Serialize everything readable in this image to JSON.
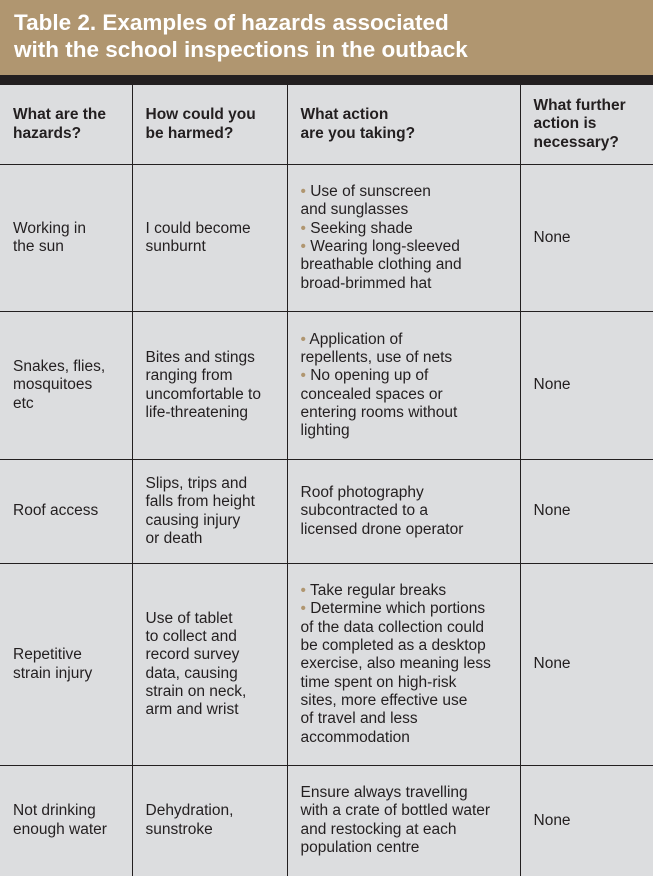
{
  "title": "Table 2. Examples of hazards associated\nwith the school inspections in the outback",
  "headers": [
    "What are the\nhazards?",
    "How could you\nbe harmed?",
    "What action\nare you taking?",
    "What further\naction is\nnecessary?"
  ],
  "rows": [
    {
      "hazard": "Working in\nthe sun",
      "harm": "I could become\nsunburnt",
      "actions": [
        "Use of sunscreen\nand sunglasses",
        "Seeking shade",
        "Wearing long-sleeved\nbreathable clothing and\nbroad-brimmed hat"
      ],
      "further": "None"
    },
    {
      "hazard": "Snakes, flies,\nmosquitoes\netc",
      "harm": "Bites and stings\nranging from\nuncomfortable to\nlife-threatening",
      "actions": [
        "Application of\nrepellents, use of nets",
        "No opening up of\nconcealed spaces or\nentering rooms without\nlighting"
      ],
      "further": "None"
    },
    {
      "hazard": "Roof access",
      "harm": "Slips, trips and\nfalls from height\ncausing injury\nor death",
      "action_text": "Roof photography\nsubcontracted to a\nlicensed drone operator",
      "further": "None"
    },
    {
      "hazard": "Repetitive\nstrain injury",
      "harm": "Use of tablet\nto collect and\nrecord survey\ndata, causing\nstrain on neck,\narm and wrist",
      "actions": [
        "Take regular breaks",
        "Determine which portions\nof the data collection could\nbe completed as a desktop\nexercise, also meaning less\ntime spent on high-risk\nsites, more effective use\nof travel and less\naccommodation"
      ],
      "further": "None"
    },
    {
      "hazard": "Not drinking\nenough water",
      "harm": "Dehydration,\nsunstroke",
      "action_text": "Ensure always travelling\nwith a crate of bottled water\nand restocking at each\npopulation centre",
      "further": "None"
    }
  ],
  "colors": {
    "banner": "#b09670",
    "bullet": "#b09670",
    "table_bg": "#dcdddf",
    "rule": "#231f20"
  }
}
